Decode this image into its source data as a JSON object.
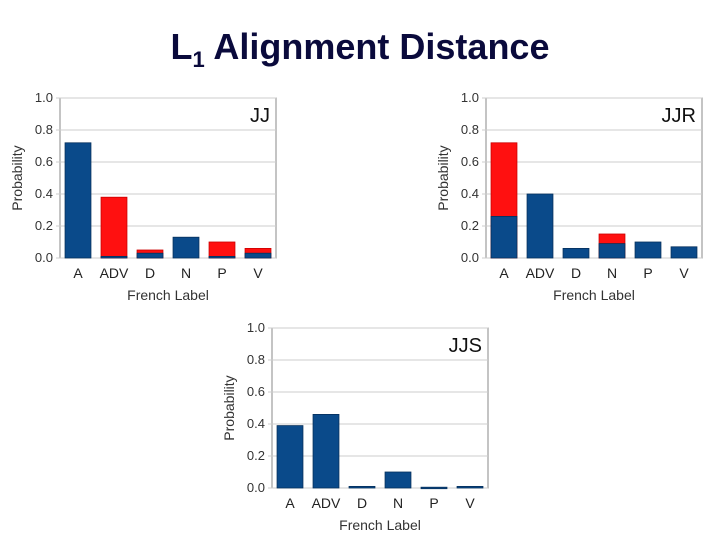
{
  "slide": {
    "title_main": "L",
    "title_sub": "1",
    "title_rest": " Alignment Distance"
  },
  "colors": {
    "blue": "#0a4a8a",
    "red": "#ff1010",
    "grid": "#cccccc",
    "axis": "#888888"
  },
  "chart_data": [
    {
      "type": "bar",
      "title": "JJ",
      "xlabel": "French Label",
      "ylabel": "Probability",
      "ylim": [
        0,
        1.0
      ],
      "yticks": [
        "0.0",
        "0.2",
        "0.4",
        "0.6",
        "0.8",
        "1.0"
      ],
      "grid": true,
      "categories": [
        "A",
        "ADV",
        "D",
        "N",
        "P",
        "V"
      ],
      "series": [
        {
          "values": [
            0.72,
            0.01,
            0.03,
            0.13,
            0.01,
            0.03
          ]
        },
        {
          "values": [
            0.72,
            0.38,
            0.05,
            0.13,
            0.1,
            0.06
          ]
        }
      ]
    },
    {
      "type": "bar",
      "title": "JJR",
      "xlabel": "French Label",
      "ylabel": "Probability",
      "ylim": [
        0,
        1.0
      ],
      "yticks": [
        "0.0",
        "0.2",
        "0.4",
        "0.6",
        "0.8",
        "1.0"
      ],
      "grid": true,
      "categories": [
        "A",
        "ADV",
        "D",
        "N",
        "P",
        "V"
      ],
      "series": [
        {
          "values": [
            0.26,
            0.4,
            0.06,
            0.09,
            0.1,
            0.07
          ]
        },
        {
          "values": [
            0.72,
            0.4,
            0.06,
            0.15,
            0.1,
            0.07
          ]
        }
      ]
    },
    {
      "type": "bar",
      "title": "JJS",
      "xlabel": "French Label",
      "ylabel": "Probability",
      "ylim": [
        0,
        1.0
      ],
      "yticks": [
        "0.0",
        "0.2",
        "0.4",
        "0.6",
        "0.8",
        "1.0"
      ],
      "grid": true,
      "categories": [
        "A",
        "ADV",
        "D",
        "N",
        "P",
        "V"
      ],
      "series": [
        {
          "values": [
            0.39,
            0.46,
            0.01,
            0.1,
            0.005,
            0.01
          ]
        },
        {
          "values": [
            0.39,
            0.46,
            0.01,
            0.1,
            0.005,
            0.01
          ]
        }
      ]
    }
  ]
}
